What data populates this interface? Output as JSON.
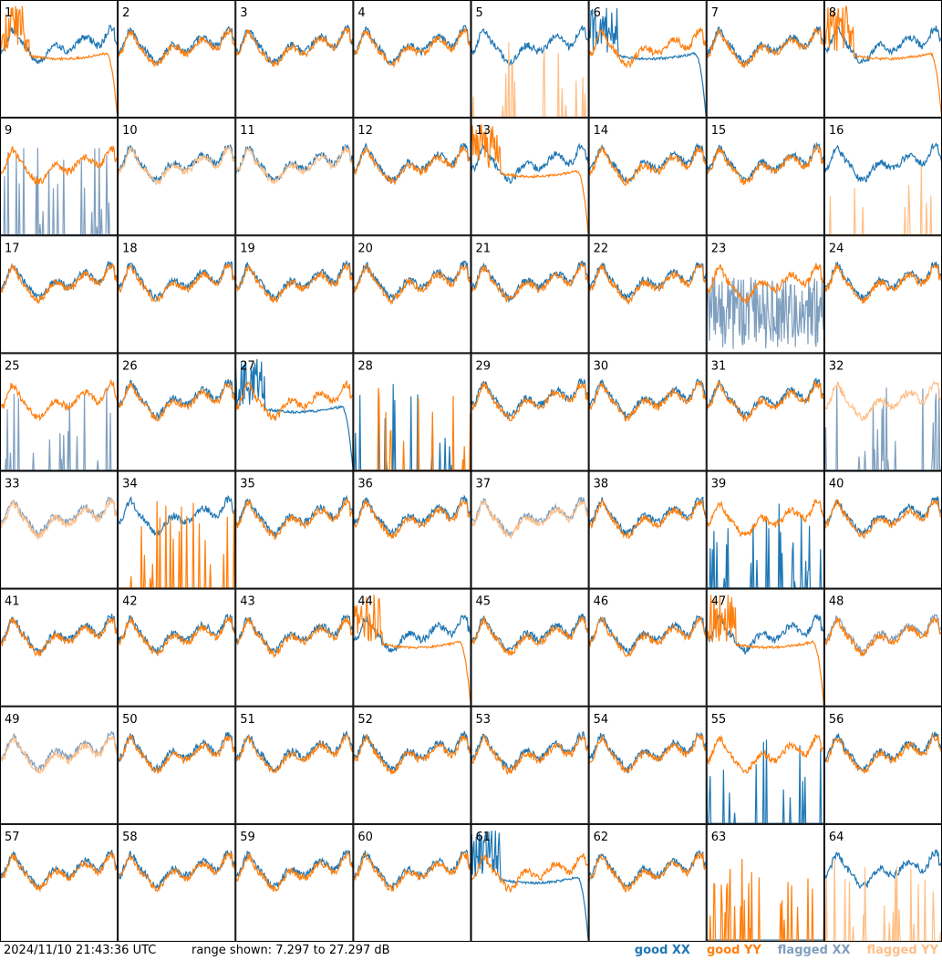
{
  "footer": {
    "timestamp": "2024/11/10 21:43:36 UTC",
    "range_text": "range shown: 7.297 to 27.297 dB"
  },
  "colors": {
    "good_xx": "#1f77b4",
    "good_yy": "#ff7f0e",
    "flagged_xx": "#7f9fbf",
    "flagged_yy": "#ffbf87"
  },
  "chart_data": {
    "type": "line",
    "layout": "grid 8x8 small multiples",
    "ylim": [
      7.297,
      27.297
    ],
    "legend_position": "bottom-right",
    "legend": [
      {
        "label": "good XX",
        "color": "#1f77b4"
      },
      {
        "label": "good YY",
        "color": "#ff7f0e"
      },
      {
        "label": "flagged XX",
        "color": "#7f9fbf"
      },
      {
        "label": "flagged YY",
        "color": "#ffbf87"
      }
    ],
    "panels": [
      {
        "id": "1",
        "xx": "good",
        "yy": "good",
        "xx_shape": "normal",
        "yy_shape": "droop"
      },
      {
        "id": "2",
        "xx": "good",
        "yy": "good",
        "xx_shape": "normal",
        "yy_shape": "normal"
      },
      {
        "id": "3",
        "xx": "good",
        "yy": "good",
        "xx_shape": "normal",
        "yy_shape": "normal"
      },
      {
        "id": "4",
        "xx": "good",
        "yy": "good",
        "xx_shape": "normal",
        "yy_shape": "normal"
      },
      {
        "id": "5",
        "xx": "good",
        "yy": "flagged",
        "xx_shape": "normal",
        "yy_shape": "spikes"
      },
      {
        "id": "6",
        "xx": "good",
        "yy": "good",
        "xx_shape": "droop",
        "yy_shape": "normal"
      },
      {
        "id": "7",
        "xx": "good",
        "yy": "good",
        "xx_shape": "normal",
        "yy_shape": "normal"
      },
      {
        "id": "8",
        "xx": "good",
        "yy": "good",
        "xx_shape": "normal",
        "yy_shape": "droop"
      },
      {
        "id": "9",
        "xx": "flagged",
        "yy": "good",
        "xx_shape": "spikes",
        "yy_shape": "normal"
      },
      {
        "id": "10",
        "xx": "good",
        "yy": "flagged",
        "xx_shape": "normal",
        "yy_shape": "normal"
      },
      {
        "id": "11",
        "xx": "good",
        "yy": "flagged",
        "xx_shape": "normal",
        "yy_shape": "normal"
      },
      {
        "id": "12",
        "xx": "good",
        "yy": "good",
        "xx_shape": "normal",
        "yy_shape": "normal"
      },
      {
        "id": "13",
        "xx": "good",
        "yy": "good",
        "xx_shape": "normal",
        "yy_shape": "droop"
      },
      {
        "id": "14",
        "xx": "good",
        "yy": "good",
        "xx_shape": "normal",
        "yy_shape": "normal"
      },
      {
        "id": "15",
        "xx": "good",
        "yy": "good",
        "xx_shape": "normal",
        "yy_shape": "normal"
      },
      {
        "id": "16",
        "xx": "good",
        "yy": "flagged",
        "xx_shape": "normal",
        "yy_shape": "spikes"
      },
      {
        "id": "17",
        "xx": "good",
        "yy": "good",
        "xx_shape": "normal",
        "yy_shape": "normal"
      },
      {
        "id": "18",
        "xx": "good",
        "yy": "good",
        "xx_shape": "normal",
        "yy_shape": "normal"
      },
      {
        "id": "19",
        "xx": "good",
        "yy": "good",
        "xx_shape": "normal",
        "yy_shape": "normal"
      },
      {
        "id": "20",
        "xx": "good",
        "yy": "good",
        "xx_shape": "normal",
        "yy_shape": "normal"
      },
      {
        "id": "21",
        "xx": "good",
        "yy": "good",
        "xx_shape": "normal",
        "yy_shape": "normal"
      },
      {
        "id": "22",
        "xx": "good",
        "yy": "good",
        "xx_shape": "normal",
        "yy_shape": "normal"
      },
      {
        "id": "23",
        "xx": "flagged",
        "yy": "good",
        "xx_shape": "noisy",
        "yy_shape": "normal"
      },
      {
        "id": "24",
        "xx": "good",
        "yy": "good",
        "xx_shape": "normal",
        "yy_shape": "normal"
      },
      {
        "id": "25",
        "xx": "flagged",
        "yy": "good",
        "xx_shape": "spikes",
        "yy_shape": "normal"
      },
      {
        "id": "26",
        "xx": "good",
        "yy": "good",
        "xx_shape": "normal",
        "yy_shape": "normal"
      },
      {
        "id": "27",
        "xx": "good",
        "yy": "good",
        "xx_shape": "droop",
        "yy_shape": "normal"
      },
      {
        "id": "28",
        "xx": "good",
        "yy": "good",
        "xx_shape": "spikes",
        "yy_shape": "spikes"
      },
      {
        "id": "29",
        "xx": "good",
        "yy": "good",
        "xx_shape": "normal",
        "yy_shape": "normal"
      },
      {
        "id": "30",
        "xx": "good",
        "yy": "good",
        "xx_shape": "normal",
        "yy_shape": "normal"
      },
      {
        "id": "31",
        "xx": "good",
        "yy": "good",
        "xx_shape": "normal",
        "yy_shape": "normal"
      },
      {
        "id": "32",
        "xx": "flagged",
        "yy": "flagged",
        "xx_shape": "spikes",
        "yy_shape": "normal"
      },
      {
        "id": "33",
        "xx": "flagged",
        "yy": "flagged",
        "xx_shape": "normal",
        "yy_shape": "normal"
      },
      {
        "id": "34",
        "xx": "good",
        "yy": "good",
        "xx_shape": "normal",
        "yy_shape": "spikes"
      },
      {
        "id": "35",
        "xx": "good",
        "yy": "good",
        "xx_shape": "normal",
        "yy_shape": "normal"
      },
      {
        "id": "36",
        "xx": "good",
        "yy": "good",
        "xx_shape": "normal",
        "yy_shape": "normal"
      },
      {
        "id": "37",
        "xx": "flagged",
        "yy": "flagged",
        "xx_shape": "normal",
        "yy_shape": "normal"
      },
      {
        "id": "38",
        "xx": "good",
        "yy": "good",
        "xx_shape": "normal",
        "yy_shape": "normal"
      },
      {
        "id": "39",
        "xx": "good",
        "yy": "good",
        "xx_shape": "spikes",
        "yy_shape": "normal"
      },
      {
        "id": "40",
        "xx": "good",
        "yy": "good",
        "xx_shape": "normal",
        "yy_shape": "normal"
      },
      {
        "id": "41",
        "xx": "good",
        "yy": "good",
        "xx_shape": "normal",
        "yy_shape": "normal"
      },
      {
        "id": "42",
        "xx": "good",
        "yy": "good",
        "xx_shape": "normal",
        "yy_shape": "normal"
      },
      {
        "id": "43",
        "xx": "good",
        "yy": "good",
        "xx_shape": "normal",
        "yy_shape": "normal"
      },
      {
        "id": "44",
        "xx": "good",
        "yy": "good",
        "xx_shape": "normal",
        "yy_shape": "droop"
      },
      {
        "id": "45",
        "xx": "good",
        "yy": "good",
        "xx_shape": "normal",
        "yy_shape": "normal"
      },
      {
        "id": "46",
        "xx": "good",
        "yy": "good",
        "xx_shape": "normal",
        "yy_shape": "normal"
      },
      {
        "id": "47",
        "xx": "good",
        "yy": "good",
        "xx_shape": "normal",
        "yy_shape": "droop"
      },
      {
        "id": "48",
        "xx": "flagged",
        "yy": "good",
        "xx_shape": "normal",
        "yy_shape": "normal"
      },
      {
        "id": "49",
        "xx": "flagged",
        "yy": "flagged",
        "xx_shape": "normal",
        "yy_shape": "normal"
      },
      {
        "id": "50",
        "xx": "good",
        "yy": "good",
        "xx_shape": "normal",
        "yy_shape": "normal"
      },
      {
        "id": "51",
        "xx": "good",
        "yy": "good",
        "xx_shape": "normal",
        "yy_shape": "normal"
      },
      {
        "id": "52",
        "xx": "good",
        "yy": "good",
        "xx_shape": "normal",
        "yy_shape": "normal"
      },
      {
        "id": "53",
        "xx": "good",
        "yy": "good",
        "xx_shape": "normal",
        "yy_shape": "normal"
      },
      {
        "id": "54",
        "xx": "good",
        "yy": "good",
        "xx_shape": "normal",
        "yy_shape": "normal"
      },
      {
        "id": "55",
        "xx": "good",
        "yy": "good",
        "xx_shape": "spikes",
        "yy_shape": "normal"
      },
      {
        "id": "56",
        "xx": "good",
        "yy": "good",
        "xx_shape": "normal",
        "yy_shape": "normal"
      },
      {
        "id": "57",
        "xx": "good",
        "yy": "good",
        "xx_shape": "normal",
        "yy_shape": "normal"
      },
      {
        "id": "58",
        "xx": "good",
        "yy": "good",
        "xx_shape": "normal",
        "yy_shape": "normal"
      },
      {
        "id": "59",
        "xx": "good",
        "yy": "good",
        "xx_shape": "normal",
        "yy_shape": "normal"
      },
      {
        "id": "60",
        "xx": "good",
        "yy": "good",
        "xx_shape": "normal",
        "yy_shape": "normal"
      },
      {
        "id": "61",
        "xx": "good",
        "yy": "good",
        "xx_shape": "droop",
        "yy_shape": "normal"
      },
      {
        "id": "62",
        "xx": "good",
        "yy": "good",
        "xx_shape": "normal",
        "yy_shape": "normal"
      },
      {
        "id": "63",
        "xx": "good",
        "yy": "good",
        "xx_shape": "flat",
        "yy_shape": "spikes"
      },
      {
        "id": "64",
        "xx": "good",
        "yy": "flagged",
        "xx_shape": "normal",
        "yy_shape": "spikes"
      }
    ]
  }
}
